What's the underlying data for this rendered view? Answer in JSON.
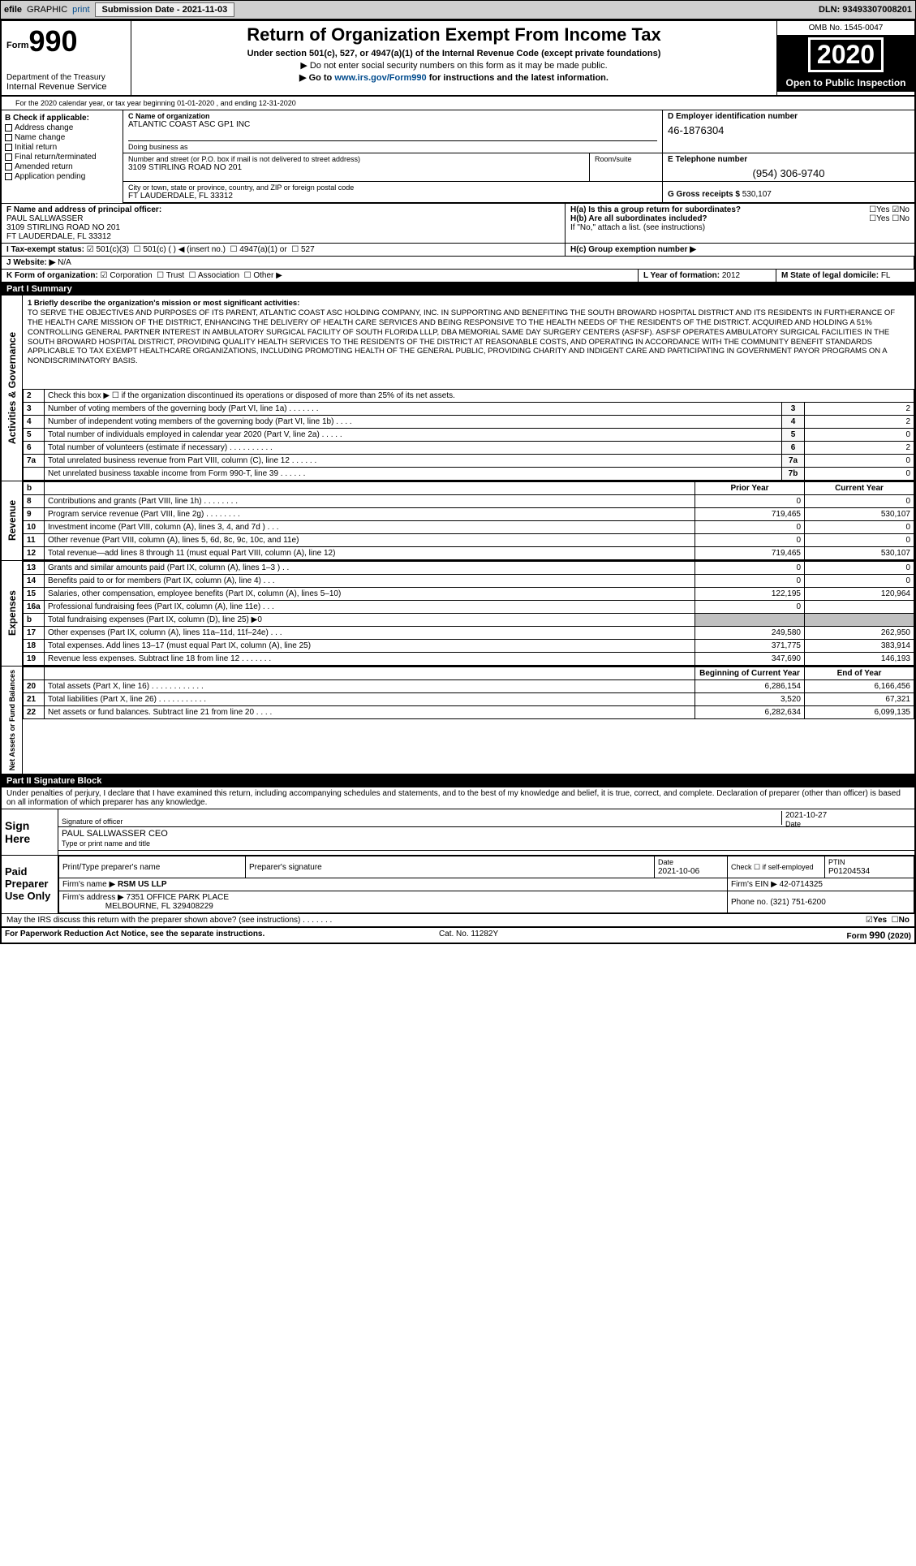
{
  "topbar": {
    "efile": "efile",
    "graphic": "GRAPHIC",
    "print": "print",
    "sub_label": "Submission Date - ",
    "sub_date": "2021-11-03",
    "dln": "DLN: 93493307008201"
  },
  "header": {
    "form": "Form",
    "num": "990",
    "title": "Return of Organization Exempt From Income Tax",
    "sub": "Under section 501(c), 527, or 4947(a)(1) of the Internal Revenue Code (except private foundations)",
    "priv": "▶ Do not enter social security numbers on this form as it may be made public.",
    "link_pre": "▶ Go to ",
    "link": "www.irs.gov/Form990",
    "link_post": " for instructions and the latest information.",
    "dept": "Department of the Treasury",
    "irs": "Internal Revenue Service",
    "omb": "OMB No. 1545-0047",
    "year": "2020",
    "open": "Open to Public Inspection"
  },
  "period": {
    "a": "A",
    "text": "For the 2020 calendar year, or tax year beginning 01-01-2020 , and ending 12-31-2020"
  },
  "B": {
    "label": "B Check if applicable:",
    "items": [
      "Address change",
      "Name change",
      "Initial return",
      "Final return/terminated",
      "Amended return",
      "Application pending"
    ]
  },
  "C": {
    "name_lab": "C Name of organization",
    "name": "ATLANTIC COAST ASC GP1 INC",
    "dba_lab": "Doing business as",
    "dba": "",
    "addr_lab": "Number and street (or P.O. box if mail is not delivered to street address)",
    "room_lab": "Room/suite",
    "addr": "3109 STIRLING ROAD NO 201",
    "city_lab": "City or town, state or province, country, and ZIP or foreign postal code",
    "city": "FT LAUDERDALE, FL  33312"
  },
  "D": {
    "label": "D Employer identification number",
    "val": "46-1876304"
  },
  "E": {
    "label": "E Telephone number",
    "val": "(954) 306-9740"
  },
  "G": {
    "label": "G Gross receipts $ ",
    "val": "530,107"
  },
  "F": {
    "label": "F  Name and address of principal officer:",
    "name": "PAUL SALLWASSER",
    "addr1": "3109 STIRLING ROAD NO 201",
    "addr2": "FT LAUDERDALE, FL  33312"
  },
  "H": {
    "a": "H(a)  Is this a group return for subordinates?",
    "a_yes": "Yes",
    "a_no": "No",
    "b": "H(b)  Are all subordinates included?",
    "b_yes": "Yes",
    "b_no": "No",
    "b2": "If \"No,\" attach a list. (see instructions)",
    "c": "H(c)  Group exemption number ▶"
  },
  "I": {
    "label": "I  Tax-exempt status:",
    "o1": "501(c)(3)",
    "o2": "501(c) (   ) ◀ (insert no.)",
    "o3": "4947(a)(1) or",
    "o4": "527"
  },
  "J": {
    "label": "J  Website: ▶",
    "val": "N/A"
  },
  "K": {
    "label": "K Form of organization:",
    "o1": "Corporation",
    "o2": "Trust",
    "o3": "Association",
    "o4": "Other ▶"
  },
  "L": {
    "label": "L Year of formation: ",
    "val": "2012"
  },
  "M": {
    "label": "M State of legal domicile: ",
    "val": "FL"
  },
  "part1": {
    "hdr": "Part I      Summary"
  },
  "mission": {
    "lead": "1   Briefly describe the organization's mission or most significant activities:",
    "text": "TO SERVE THE OBJECTIVES AND PURPOSES OF ITS PARENT, ATLANTIC COAST ASC HOLDING COMPANY, INC. IN SUPPORTING AND BENEFITING THE SOUTH BROWARD HOSPITAL DISTRICT AND ITS RESIDENTS IN FURTHERANCE OF THE HEALTH CARE MISSION OF THE DISTRICT, ENHANCING THE DELIVERY OF HEALTH CARE SERVICES AND BEING RESPONSIVE TO THE HEALTH NEEDS OF THE RESIDENTS OF THE DISTRICT. ACQUIRED AND HOLDING A 51% CONTROLLING GENERAL PARTNER INTEREST IN AMBULATORY SURGICAL FACILITY OF SOUTH FLORIDA LLLP, DBA MEMORIAL SAME DAY SURGERY CENTERS (ASFSF). ASFSF OPERATES AMBULATORY SURGICAL FACILITIES IN THE SOUTH BROWARD HOSPITAL DISTRICT, PROVIDING QUALITY HEALTH SERVICES TO THE RESIDENTS OF THE DISTRICT AT REASONABLE COSTS, AND OPERATING IN ACCORDANCE WITH THE COMMUNITY BENEFIT STANDARDS APPLICABLE TO TAX EXEMPT HEALTHCARE ORGANIZATIONS, INCLUDING PROMOTING HEALTH OF THE GENERAL PUBLIC, PROVIDING CHARITY AND INDIGENT CARE AND PARTICIPATING IN GOVERNMENT PAYOR PROGRAMS ON A NONDISCRIMINATORY BASIS."
  },
  "gov_lines": [
    {
      "n": "2",
      "t": "Check this box ▶ ☐ if the organization discontinued its operations or disposed of more than 25% of its net assets."
    },
    {
      "n": "3",
      "t": "Number of voting members of the governing body (Part VI, line 1a) . . . . . . .",
      "lab": "3",
      "v": "2"
    },
    {
      "n": "4",
      "t": "Number of independent voting members of the governing body (Part VI, line 1b) . . . .",
      "lab": "4",
      "v": "2"
    },
    {
      "n": "5",
      "t": "Total number of individuals employed in calendar year 2020 (Part V, line 2a) . . . . .",
      "lab": "5",
      "v": "0"
    },
    {
      "n": "6",
      "t": "Total number of volunteers (estimate if necessary) . . . . . . . . . .",
      "lab": "6",
      "v": "2"
    },
    {
      "n": "7a",
      "t": "Total unrelated business revenue from Part VIII, column (C), line 12 . . . . . .",
      "lab": "7a",
      "v": "0"
    },
    {
      "n": "",
      "t": "Net unrelated business taxable income from Form 990-T, line 39 . . . . . .",
      "lab": "7b",
      "v": "0"
    }
  ],
  "rev_hdr": {
    "b": "b",
    "prior": "Prior Year",
    "current": "Current Year"
  },
  "revenue": [
    {
      "n": "8",
      "t": "Contributions and grants (Part VIII, line 1h) . . . . . . . .",
      "p": "0",
      "c": "0"
    },
    {
      "n": "9",
      "t": "Program service revenue (Part VIII, line 2g) . . . . . . . .",
      "p": "719,465",
      "c": "530,107"
    },
    {
      "n": "10",
      "t": "Investment income (Part VIII, column (A), lines 3, 4, and 7d )  .  .  .",
      "p": "0",
      "c": "0"
    },
    {
      "n": "11",
      "t": "Other revenue (Part VIII, column (A), lines 5, 6d, 8c, 9c, 10c, and 11e)",
      "p": "0",
      "c": "0"
    },
    {
      "n": "12",
      "t": "Total revenue—add lines 8 through 11 (must equal Part VIII, column (A), line 12)",
      "p": "719,465",
      "c": "530,107"
    }
  ],
  "expenses": [
    {
      "n": "13",
      "t": "Grants and similar amounts paid (Part IX, column (A), lines 1–3 ) .  .",
      "p": "0",
      "c": "0"
    },
    {
      "n": "14",
      "t": "Benefits paid to or for members (Part IX, column (A), line 4) .  .  .",
      "p": "0",
      "c": "0"
    },
    {
      "n": "15",
      "t": "Salaries, other compensation, employee benefits (Part IX, column (A), lines 5–10)",
      "p": "122,195",
      "c": "120,964"
    },
    {
      "n": "16a",
      "t": "Professional fundraising fees (Part IX, column (A), line 11e) .  .  .",
      "p": "0",
      "c": ""
    },
    {
      "n": "b",
      "t": "Total fundraising expenses (Part IX, column (D), line 25) ▶0",
      "p": "",
      "c": "",
      "grey": true
    },
    {
      "n": "17",
      "t": "Other expenses (Part IX, column (A), lines 11a–11d, 11f–24e) .  .  .",
      "p": "249,580",
      "c": "262,950"
    },
    {
      "n": "18",
      "t": "Total expenses. Add lines 13–17 (must equal Part IX, column (A), line 25)",
      "p": "371,775",
      "c": "383,914"
    },
    {
      "n": "19",
      "t": "Revenue less expenses. Subtract line 18 from line 12 . . . . . . .",
      "p": "347,690",
      "c": "146,193"
    }
  ],
  "net_hdr": {
    "b": "Beginning of Current Year",
    "e": "End of Year"
  },
  "netassets": [
    {
      "n": "20",
      "t": "Total assets (Part X, line 16) . . . . . . . . . . . .",
      "p": "6,286,154",
      "c": "6,166,456"
    },
    {
      "n": "21",
      "t": "Total liabilities (Part X, line 26) . . . . . . . . . . .",
      "p": "3,520",
      "c": "67,321"
    },
    {
      "n": "22",
      "t": "Net assets or fund balances. Subtract line 21 from line 20 . . . .",
      "p": "6,282,634",
      "c": "6,099,135"
    }
  ],
  "side": {
    "ag": "Activities & Governance",
    "rev": "Revenue",
    "exp": "Expenses",
    "net": "Net Assets or Fund Balances"
  },
  "part2": {
    "hdr": "Part II      Signature Block",
    "decl": "Under penalties of perjury, I declare that I have examined this return, including accompanying schedules and statements, and to the best of my knowledge and belief, it is true, correct, and complete. Declaration of preparer (other than officer) is based on all information of which preparer has any knowledge."
  },
  "sign": {
    "here": "Sign Here",
    "sig_lab": "Signature of officer",
    "date_lab": "Date",
    "date": "2021-10-27",
    "name": "PAUL SALLWASSER  CEO",
    "name_lab": "Type or print name and title"
  },
  "paid": {
    "label": "Paid Preparer Use Only",
    "c1": "Print/Type preparer's name",
    "c2": "Preparer's signature",
    "c3": "Date",
    "c3v": "2021-10-06",
    "c4": "Check ☐ if self-employed",
    "c5": "PTIN",
    "c5v": "P01204534",
    "firm_lab": "Firm's name   ▶",
    "firm": "RSM US LLP",
    "ein_lab": "Firm's EIN ▶",
    "ein": "42-0714325",
    "addr_lab": "Firm's address ▶",
    "addr1": "7351 OFFICE PARK PLACE",
    "addr2": "MELBOURNE, FL  329408229",
    "phone_lab": "Phone no.",
    "phone": "(321) 751-6200"
  },
  "discuss": {
    "q": "May the IRS discuss this return with the preparer shown above? (see instructions)  .  .  .  .  .  .  .",
    "yes": "Yes",
    "no": "No"
  },
  "footer": {
    "l": "For Paperwork Reduction Act Notice, see the separate instructions.",
    "m": "Cat. No. 11282Y",
    "r": "Form 990 (2020)"
  }
}
